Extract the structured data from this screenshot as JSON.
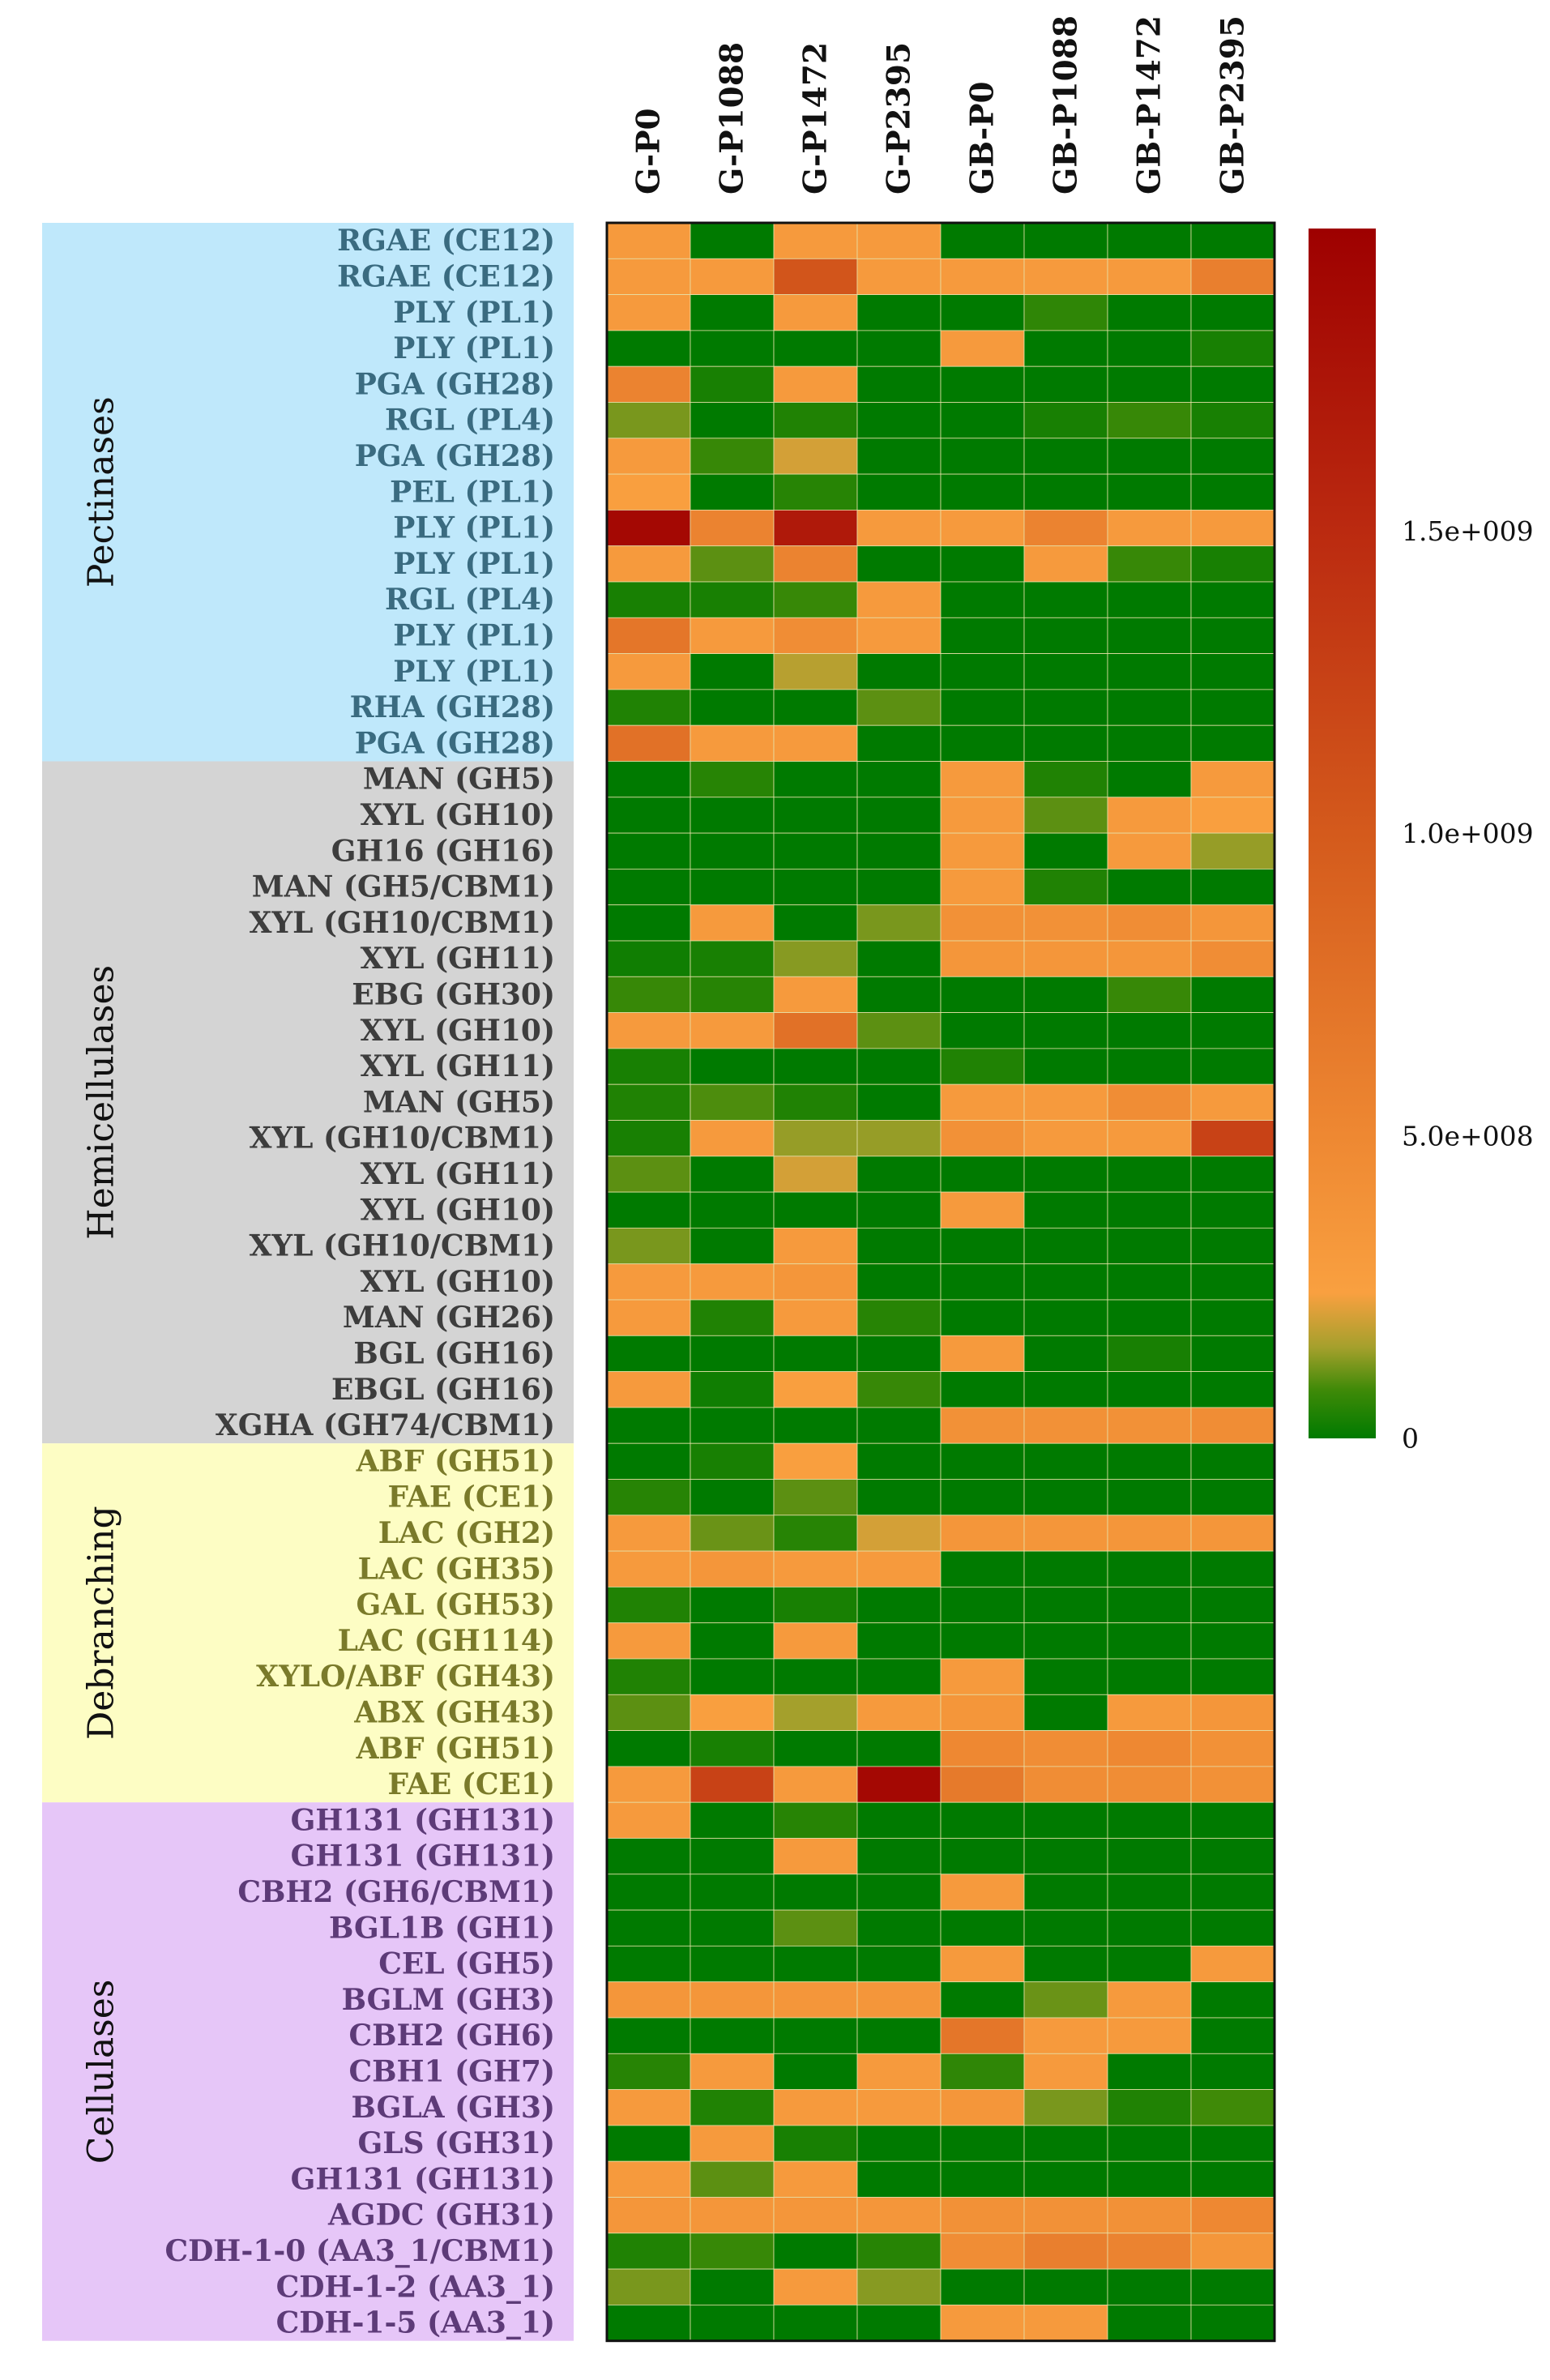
{
  "chart_data": {
    "type": "heatmap",
    "title": "",
    "columns": [
      "G-P0",
      "G-P1088",
      "G-P1472",
      "G-P2395",
      "GB-P0",
      "GB-P1088",
      "GB-P1472",
      "GB-P2395"
    ],
    "rows": [
      "RGAE (CE12)",
      "RGAE (CE12)",
      "PLY (PL1)",
      "PLY (PL1)",
      "PGA (GH28)",
      "RGL (PL4)",
      "PGA (GH28)",
      "PEL (PL1)",
      "PLY (PL1)",
      "PLY (PL1)",
      "RGL (PL4)",
      "PLY (PL1)",
      "PLY (PL1)",
      "RHA (GH28)",
      "PGA (GH28)",
      "MAN (GH5)",
      "XYL (GH10)",
      "GH16 (GH16)",
      "MAN (GH5/CBM1)",
      "XYL (GH10/CBM1)",
      "XYL (GH11)",
      "EBG (GH30)",
      "XYL (GH10)",
      "XYL (GH11)",
      "MAN (GH5)",
      "XYL (GH10/CBM1)",
      "XYL (GH11)",
      "XYL (GH10)",
      "XYL (GH10/CBM1)",
      "XYL (GH10)",
      "MAN (GH26)",
      "BGL (GH16)",
      "EBGL (GH16)",
      "XGHA (GH74/CBM1)",
      "ABF (GH51)",
      "FAE (CE1)",
      "LAC (GH2)",
      "LAC (GH35)",
      "GAL (GH53)",
      "LAC (GH114)",
      "XYLO/ABF (GH43)",
      "ABX (GH43)",
      "ABF (GH51)",
      "FAE (CE1)",
      "GH131 (GH131)",
      "GH131 (GH131)",
      "CBH2 (GH6/CBM1)",
      "BGL1B (GH1)",
      "CEL (GH5)",
      "BGLM (GH3)",
      "CBH2 (GH6)",
      "CBH1 (GH7)",
      "BGLA (GH3)",
      "GLS (GH31)",
      "GH131 (GH131)",
      "AGDC (GH31)",
      "CDH-1-0 (AA3_1/CBM1)",
      "CDH-1-2 (AA3_1)",
      "CDH-1-5 (AA3_1)"
    ],
    "groups": [
      {
        "name": "Pectinases",
        "start": 0,
        "count": 15,
        "color": "#bfe8fb",
        "text_color": "#3a6b80"
      },
      {
        "name": "Hemicellulases",
        "start": 15,
        "count": 19,
        "color": "#d4d4d4",
        "text_color": "#3d3d3d"
      },
      {
        "name": "Debranching",
        "start": 34,
        "count": 10,
        "color": "#fdfdc4",
        "text_color": "#7a7a2a"
      },
      {
        "name": "Cellulases",
        "start": 44,
        "count": 15,
        "color": "#e6c6f8",
        "text_color": "#5d3b78"
      }
    ],
    "values": [
      [
        300000000,
        0,
        300000000,
        300000000,
        0,
        0,
        0,
        0
      ],
      [
        300000000,
        300000000,
        1050000000,
        300000000,
        300000000,
        300000000,
        300000000,
        600000000
      ],
      [
        300000000,
        0,
        300000000,
        0,
        0,
        60000000,
        0,
        0
      ],
      [
        0,
        0,
        0,
        0,
        300000000,
        0,
        0,
        30000000
      ],
      [
        550000000,
        30000000,
        300000000,
        0,
        0,
        0,
        0,
        0
      ],
      [
        120000000,
        0,
        40000000,
        0,
        0,
        30000000,
        70000000,
        30000000
      ],
      [
        300000000,
        70000000,
        200000000,
        0,
        0,
        0,
        0,
        0
      ],
      [
        250000000,
        0,
        50000000,
        0,
        0,
        0,
        0,
        0
      ],
      [
        1900000000,
        550000000,
        1700000000,
        300000000,
        300000000,
        550000000,
        300000000,
        300000000
      ],
      [
        300000000,
        100000000,
        550000000,
        0,
        0,
        300000000,
        70000000,
        30000000
      ],
      [
        30000000,
        30000000,
        70000000,
        300000000,
        0,
        0,
        0,
        0
      ],
      [
        700000000,
        300000000,
        450000000,
        300000000,
        0,
        0,
        0,
        0
      ],
      [
        300000000,
        0,
        170000000,
        0,
        0,
        0,
        0,
        0
      ],
      [
        40000000,
        0,
        0,
        100000000,
        0,
        0,
        0,
        0
      ],
      [
        750000000,
        300000000,
        300000000,
        0,
        0,
        0,
        0,
        0
      ],
      [
        0,
        50000000,
        0,
        0,
        300000000,
        40000000,
        0,
        300000000
      ],
      [
        0,
        0,
        0,
        0,
        300000000,
        100000000,
        300000000,
        250000000
      ],
      [
        0,
        0,
        0,
        0,
        300000000,
        0,
        300000000,
        140000000
      ],
      [
        0,
        0,
        0,
        0,
        300000000,
        40000000,
        0,
        0
      ],
      [
        0,
        300000000,
        0,
        120000000,
        400000000,
        400000000,
        450000000,
        350000000
      ],
      [
        20000000,
        30000000,
        130000000,
        0,
        350000000,
        350000000,
        350000000,
        450000000
      ],
      [
        70000000,
        50000000,
        300000000,
        0,
        0,
        0,
        70000000,
        0
      ],
      [
        300000000,
        300000000,
        750000000,
        100000000,
        0,
        0,
        0,
        0
      ],
      [
        30000000,
        0,
        0,
        0,
        40000000,
        0,
        0,
        0
      ],
      [
        40000000,
        90000000,
        40000000,
        0,
        300000000,
        300000000,
        450000000,
        300000000
      ],
      [
        30000000,
        300000000,
        140000000,
        140000000,
        400000000,
        300000000,
        300000000,
        1250000000
      ],
      [
        100000000,
        0,
        200000000,
        0,
        0,
        0,
        0,
        0
      ],
      [
        0,
        0,
        0,
        0,
        300000000,
        0,
        0,
        0
      ],
      [
        120000000,
        0,
        300000000,
        0,
        0,
        0,
        0,
        0
      ],
      [
        300000000,
        300000000,
        350000000,
        0,
        0,
        0,
        0,
        0
      ],
      [
        300000000,
        40000000,
        300000000,
        50000000,
        0,
        0,
        0,
        0
      ],
      [
        0,
        0,
        0,
        0,
        300000000,
        0,
        30000000,
        0
      ],
      [
        300000000,
        20000000,
        250000000,
        70000000,
        0,
        0,
        0,
        0
      ],
      [
        0,
        0,
        0,
        0,
        400000000,
        400000000,
        400000000,
        450000000
      ],
      [
        0,
        30000000,
        250000000,
        0,
        0,
        0,
        0,
        0
      ],
      [
        50000000,
        0,
        100000000,
        0,
        0,
        0,
        0,
        0
      ],
      [
        300000000,
        110000000,
        50000000,
        200000000,
        350000000,
        350000000,
        350000000,
        350000000
      ],
      [
        300000000,
        350000000,
        300000000,
        300000000,
        0,
        0,
        0,
        0
      ],
      [
        40000000,
        0,
        30000000,
        0,
        0,
        0,
        0,
        0
      ],
      [
        300000000,
        0,
        300000000,
        0,
        0,
        0,
        0,
        0
      ],
      [
        40000000,
        0,
        0,
        0,
        300000000,
        0,
        0,
        0
      ],
      [
        100000000,
        250000000,
        150000000,
        300000000,
        350000000,
        0,
        300000000,
        350000000
      ],
      [
        0,
        30000000,
        0,
        0,
        500000000,
        450000000,
        500000000,
        400000000
      ],
      [
        300000000,
        1250000000,
        300000000,
        1900000000,
        650000000,
        450000000,
        450000000,
        400000000
      ],
      [
        300000000,
        0,
        50000000,
        0,
        0,
        0,
        0,
        0
      ],
      [
        0,
        0,
        300000000,
        0,
        0,
        0,
        0,
        0
      ],
      [
        0,
        0,
        0,
        0,
        300000000,
        0,
        0,
        0
      ],
      [
        0,
        0,
        100000000,
        0,
        0,
        0,
        0,
        0
      ],
      [
        0,
        0,
        0,
        0,
        300000000,
        0,
        0,
        300000000
      ],
      [
        350000000,
        350000000,
        350000000,
        350000000,
        0,
        110000000,
        300000000,
        0
      ],
      [
        0,
        0,
        0,
        0,
        700000000,
        300000000,
        300000000,
        0
      ],
      [
        50000000,
        300000000,
        0,
        300000000,
        60000000,
        300000000,
        0,
        0
      ],
      [
        300000000,
        40000000,
        300000000,
        300000000,
        350000000,
        120000000,
        40000000,
        80000000
      ],
      [
        0,
        300000000,
        30000000,
        0,
        0,
        0,
        0,
        0
      ],
      [
        300000000,
        100000000,
        300000000,
        0,
        0,
        0,
        0,
        0
      ],
      [
        350000000,
        350000000,
        350000000,
        350000000,
        400000000,
        400000000,
        400000000,
        500000000
      ],
      [
        40000000,
        70000000,
        0,
        50000000,
        450000000,
        600000000,
        550000000,
        350000000
      ],
      [
        120000000,
        0,
        300000000,
        130000000,
        0,
        0,
        0,
        0
      ],
      [
        0,
        0,
        0,
        0,
        300000000,
        300000000,
        0,
        0
      ]
    ],
    "colorbar": {
      "min": 0,
      "max": 2000000000,
      "ticks": [
        {
          "value": 0,
          "label": "0"
        },
        {
          "value": 500000000,
          "label": "5.0e+008"
        },
        {
          "value": 1000000000,
          "label": "1.0e+009"
        },
        {
          "value": 1500000000,
          "label": "1.5e+009"
        }
      ],
      "stops": [
        {
          "value": 0,
          "color": "#007a00"
        },
        {
          "value": 80000000,
          "color": "#3f8a08"
        },
        {
          "value": 150000000,
          "color": "#a4a02c"
        },
        {
          "value": 240000000,
          "color": "#f9a040"
        },
        {
          "value": 500000000,
          "color": "#ee8832"
        },
        {
          "value": 1000000000,
          "color": "#d45a1c"
        },
        {
          "value": 1500000000,
          "color": "#bb2a10"
        },
        {
          "value": 2000000000,
          "color": "#9e0000"
        }
      ]
    }
  }
}
